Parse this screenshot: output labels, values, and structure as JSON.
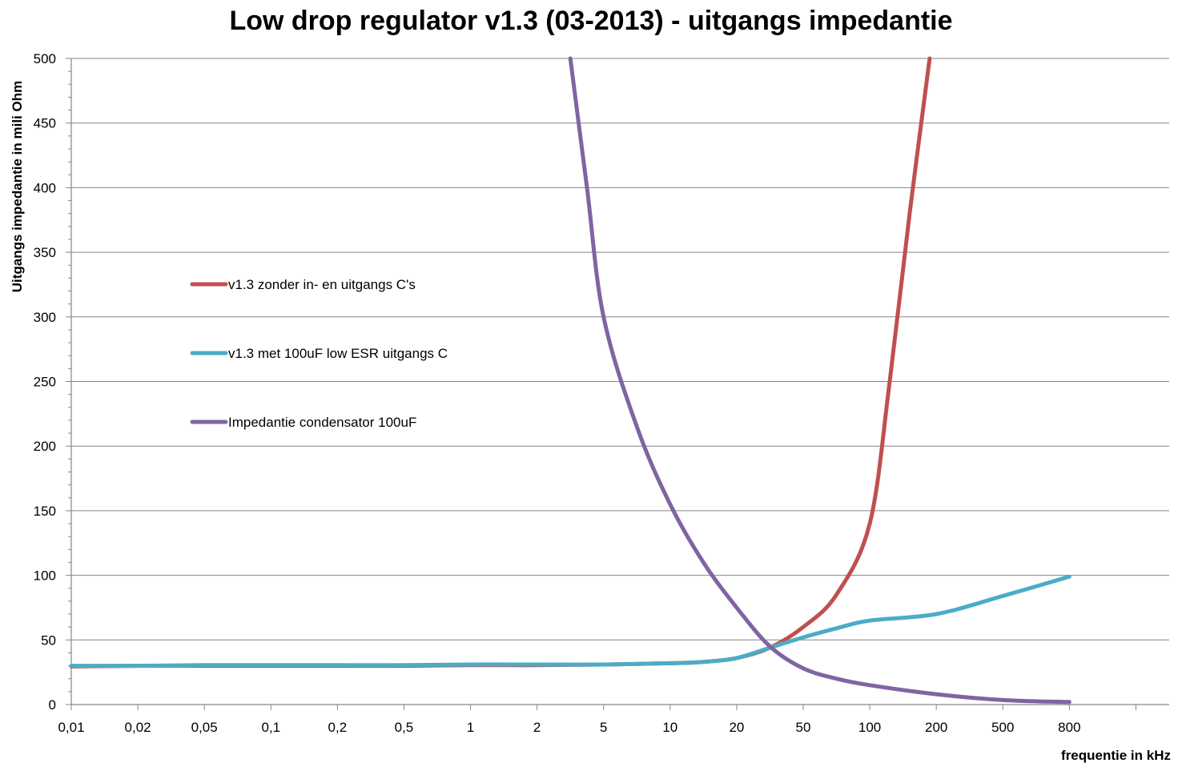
{
  "chart_data": {
    "type": "line",
    "title": "Low drop regulator v1.3 (03-2013) - uitgangs impedantie",
    "xlabel": "frequentie in kHz",
    "ylabel": "Uitgangs impedantie in mili Ohm",
    "categories": [
      "0,01",
      "0,02",
      "0,05",
      "0,1",
      "0,2",
      "0,5",
      "1",
      "2",
      "5",
      "10",
      "20",
      "50",
      "100",
      "200",
      "500",
      "800",
      ""
    ],
    "ylim": [
      0,
      500
    ],
    "yticks": [
      0,
      50,
      100,
      150,
      200,
      250,
      300,
      350,
      400,
      450,
      500
    ],
    "grid": true,
    "legend_position": "left-center",
    "series": [
      {
        "name": "v1.3 zonder in- en uitgangs C's",
        "color": "#c0504d",
        "points": [
          [
            0,
            29.5
          ],
          [
            1,
            30
          ],
          [
            2,
            30
          ],
          [
            3,
            30
          ],
          [
            4,
            30
          ],
          [
            5,
            30
          ],
          [
            6,
            30.5
          ],
          [
            7,
            30.5
          ],
          [
            8,
            31
          ],
          [
            9,
            32
          ],
          [
            9.5,
            33
          ],
          [
            10,
            36
          ],
          [
            10.5,
            44
          ],
          [
            11,
            60
          ],
          [
            11.5,
            85
          ],
          [
            12,
            140
          ],
          [
            12.3,
            250
          ],
          [
            12.6,
            380
          ],
          [
            12.9,
            500
          ]
        ]
      },
      {
        "name": "v1.3 met 100uF low ESR uitgangs C",
        "color": "#4bacc6",
        "points": [
          [
            0,
            30
          ],
          [
            1,
            30
          ],
          [
            2,
            30.5
          ],
          [
            3,
            30.5
          ],
          [
            4,
            30.5
          ],
          [
            5,
            30.5
          ],
          [
            6,
            31
          ],
          [
            7,
            31
          ],
          [
            8,
            31
          ],
          [
            9,
            32
          ],
          [
            9.5,
            33
          ],
          [
            10,
            36
          ],
          [
            10.5,
            44
          ],
          [
            11,
            52
          ],
          [
            11.5,
            59
          ],
          [
            12,
            65
          ],
          [
            13,
            70
          ],
          [
            14,
            84
          ],
          [
            15,
            99
          ]
        ]
      },
      {
        "name": "Impedantie condensator 100uF",
        "color": "#8064a2",
        "points": [
          [
            7.5,
            500
          ],
          [
            7.75,
            400
          ],
          [
            8,
            300
          ],
          [
            8.5,
            215
          ],
          [
            9,
            155
          ],
          [
            9.5,
            110
          ],
          [
            10,
            75
          ],
          [
            10.5,
            45
          ],
          [
            11,
            28
          ],
          [
            11.5,
            20
          ],
          [
            12,
            15
          ],
          [
            13,
            8
          ],
          [
            14,
            3.5
          ],
          [
            15,
            2
          ]
        ]
      }
    ]
  }
}
